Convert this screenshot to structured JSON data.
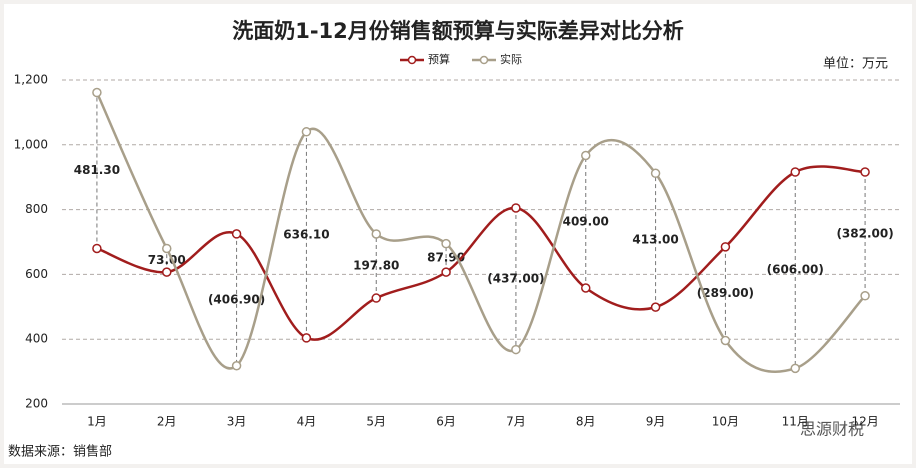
{
  "chart_data": {
    "type": "line",
    "title": "洗面奶1-12月份销售额预算与实际差异对比分析",
    "unit": "单位：万元",
    "source": "数据来源：销售部",
    "watermark": "思源财税",
    "categories": [
      "1月",
      "2月",
      "3月",
      "4月",
      "5月",
      "6月",
      "7月",
      "8月",
      "9月",
      "10月",
      "11月",
      "12月"
    ],
    "series": [
      {
        "name": "预算",
        "color": "#a11d1d",
        "values": [
          680,
          607,
          725,
          404,
          527,
          607,
          805,
          558,
          499,
          685,
          916,
          916
        ]
      },
      {
        "name": "实际",
        "color": "#a89f8a",
        "values": [
          1161.3,
          680,
          318.1,
          1040.1,
          724.8,
          694.9,
          368,
          967,
          912,
          396,
          310,
          534
        ]
      }
    ],
    "difference_values": [
      481.3,
      73,
      -406.9,
      636.1,
      197.8,
      87.9,
      -437,
      409,
      413,
      -289,
      -606,
      -382
    ],
    "difference_labels": [
      "481.30",
      "73.00",
      "(406.90)",
      "636.10",
      "197.80",
      "87.90",
      "(437.00)",
      "409.00",
      "413.00",
      "(289.00)",
      "(606.00)",
      "(382.00)"
    ],
    "ylim": [
      200,
      1200
    ],
    "yticks": [
      200,
      400,
      600,
      800,
      {
        "value": 1000,
        "label": "1,000"
      },
      {
        "value": 1200,
        "label": "1,200"
      }
    ],
    "grid": true,
    "legend": "top"
  }
}
